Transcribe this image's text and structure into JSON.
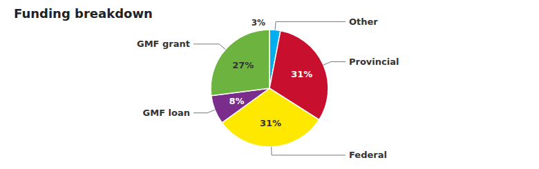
{
  "chart_data": {
    "type": "pie",
    "title": "Funding breakdown",
    "categories": [
      "Other",
      "Provincial",
      "Federal",
      "GMF loan",
      "GMF grant"
    ],
    "values": [
      3,
      31,
      31,
      8,
      27
    ],
    "value_labels": [
      "3%",
      "31%",
      "31%",
      "8%",
      "27%"
    ],
    "colors": [
      "#00AEEF",
      "#C8102E",
      "#FFE800",
      "#7B2D8B",
      "#6DB33F"
    ],
    "data_labels": true
  }
}
